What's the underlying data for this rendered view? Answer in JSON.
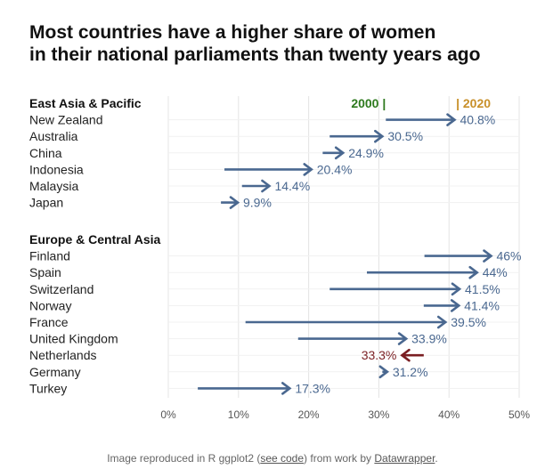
{
  "title_line1": "Most countries have a higher share of women",
  "title_line2": "in their national parliaments than twenty years ago",
  "caption": {
    "pre": "Image reproduced in R ggplot2 (",
    "link1": "see code",
    "mid": ") from work by ",
    "link2": "Datawrapper",
    "post": "."
  },
  "colors": {
    "increase": "#4a6890",
    "decrease": "#7a1e22",
    "label_2000": "#2e7a1e",
    "label_2020": "#c8902a",
    "grid": "#e4e4e4"
  },
  "chart_data": {
    "type": "arrow-dot",
    "x_range": [
      0,
      50
    ],
    "x_ticks": [
      0,
      10,
      20,
      30,
      40,
      50
    ],
    "x_tick_labels": [
      "0%",
      "10%",
      "20%",
      "30%",
      "40%",
      "50%"
    ],
    "legend": {
      "label_2000": "2000 |",
      "label_2020": "| 2020",
      "x_2000": 31,
      "x_2020": 41
    },
    "groups": [
      {
        "name": "East Asia & Pacific",
        "rows": [
          {
            "country": "New Zealand",
            "y2000": 31,
            "y2020": 40.8,
            "label": "40.8%"
          },
          {
            "country": "Australia",
            "y2000": 23,
            "y2020": 30.5,
            "label": "30.5%"
          },
          {
            "country": "China",
            "y2000": 22,
            "y2020": 24.9,
            "label": "24.9%"
          },
          {
            "country": "Indonesia",
            "y2000": 8,
            "y2020": 20.4,
            "label": "20.4%"
          },
          {
            "country": "Malaysia",
            "y2000": 10.5,
            "y2020": 14.4,
            "label": "14.4%"
          },
          {
            "country": "Japan",
            "y2000": 7.5,
            "y2020": 9.9,
            "label": "9.9%"
          }
        ]
      },
      {
        "name": "Europe & Central Asia",
        "rows": [
          {
            "country": "Finland",
            "y2000": 36.5,
            "y2020": 46,
            "label": "46%"
          },
          {
            "country": "Spain",
            "y2000": 28.3,
            "y2020": 44,
            "label": "44%"
          },
          {
            "country": "Switzerland",
            "y2000": 23,
            "y2020": 41.5,
            "label": "41.5%"
          },
          {
            "country": "Norway",
            "y2000": 36.4,
            "y2020": 41.4,
            "label": "41.4%"
          },
          {
            "country": "France",
            "y2000": 11,
            "y2020": 39.5,
            "label": "39.5%"
          },
          {
            "country": "United Kingdom",
            "y2000": 18.5,
            "y2020": 33.9,
            "label": "33.9%"
          },
          {
            "country": "Netherlands",
            "y2000": 36.4,
            "y2020": 33.3,
            "label": "33.3%"
          },
          {
            "country": "Germany",
            "y2000": 30.5,
            "y2020": 31.2,
            "label": "31.2%"
          },
          {
            "country": "Turkey",
            "y2000": 4.2,
            "y2020": 17.3,
            "label": "17.3%"
          }
        ]
      }
    ]
  }
}
